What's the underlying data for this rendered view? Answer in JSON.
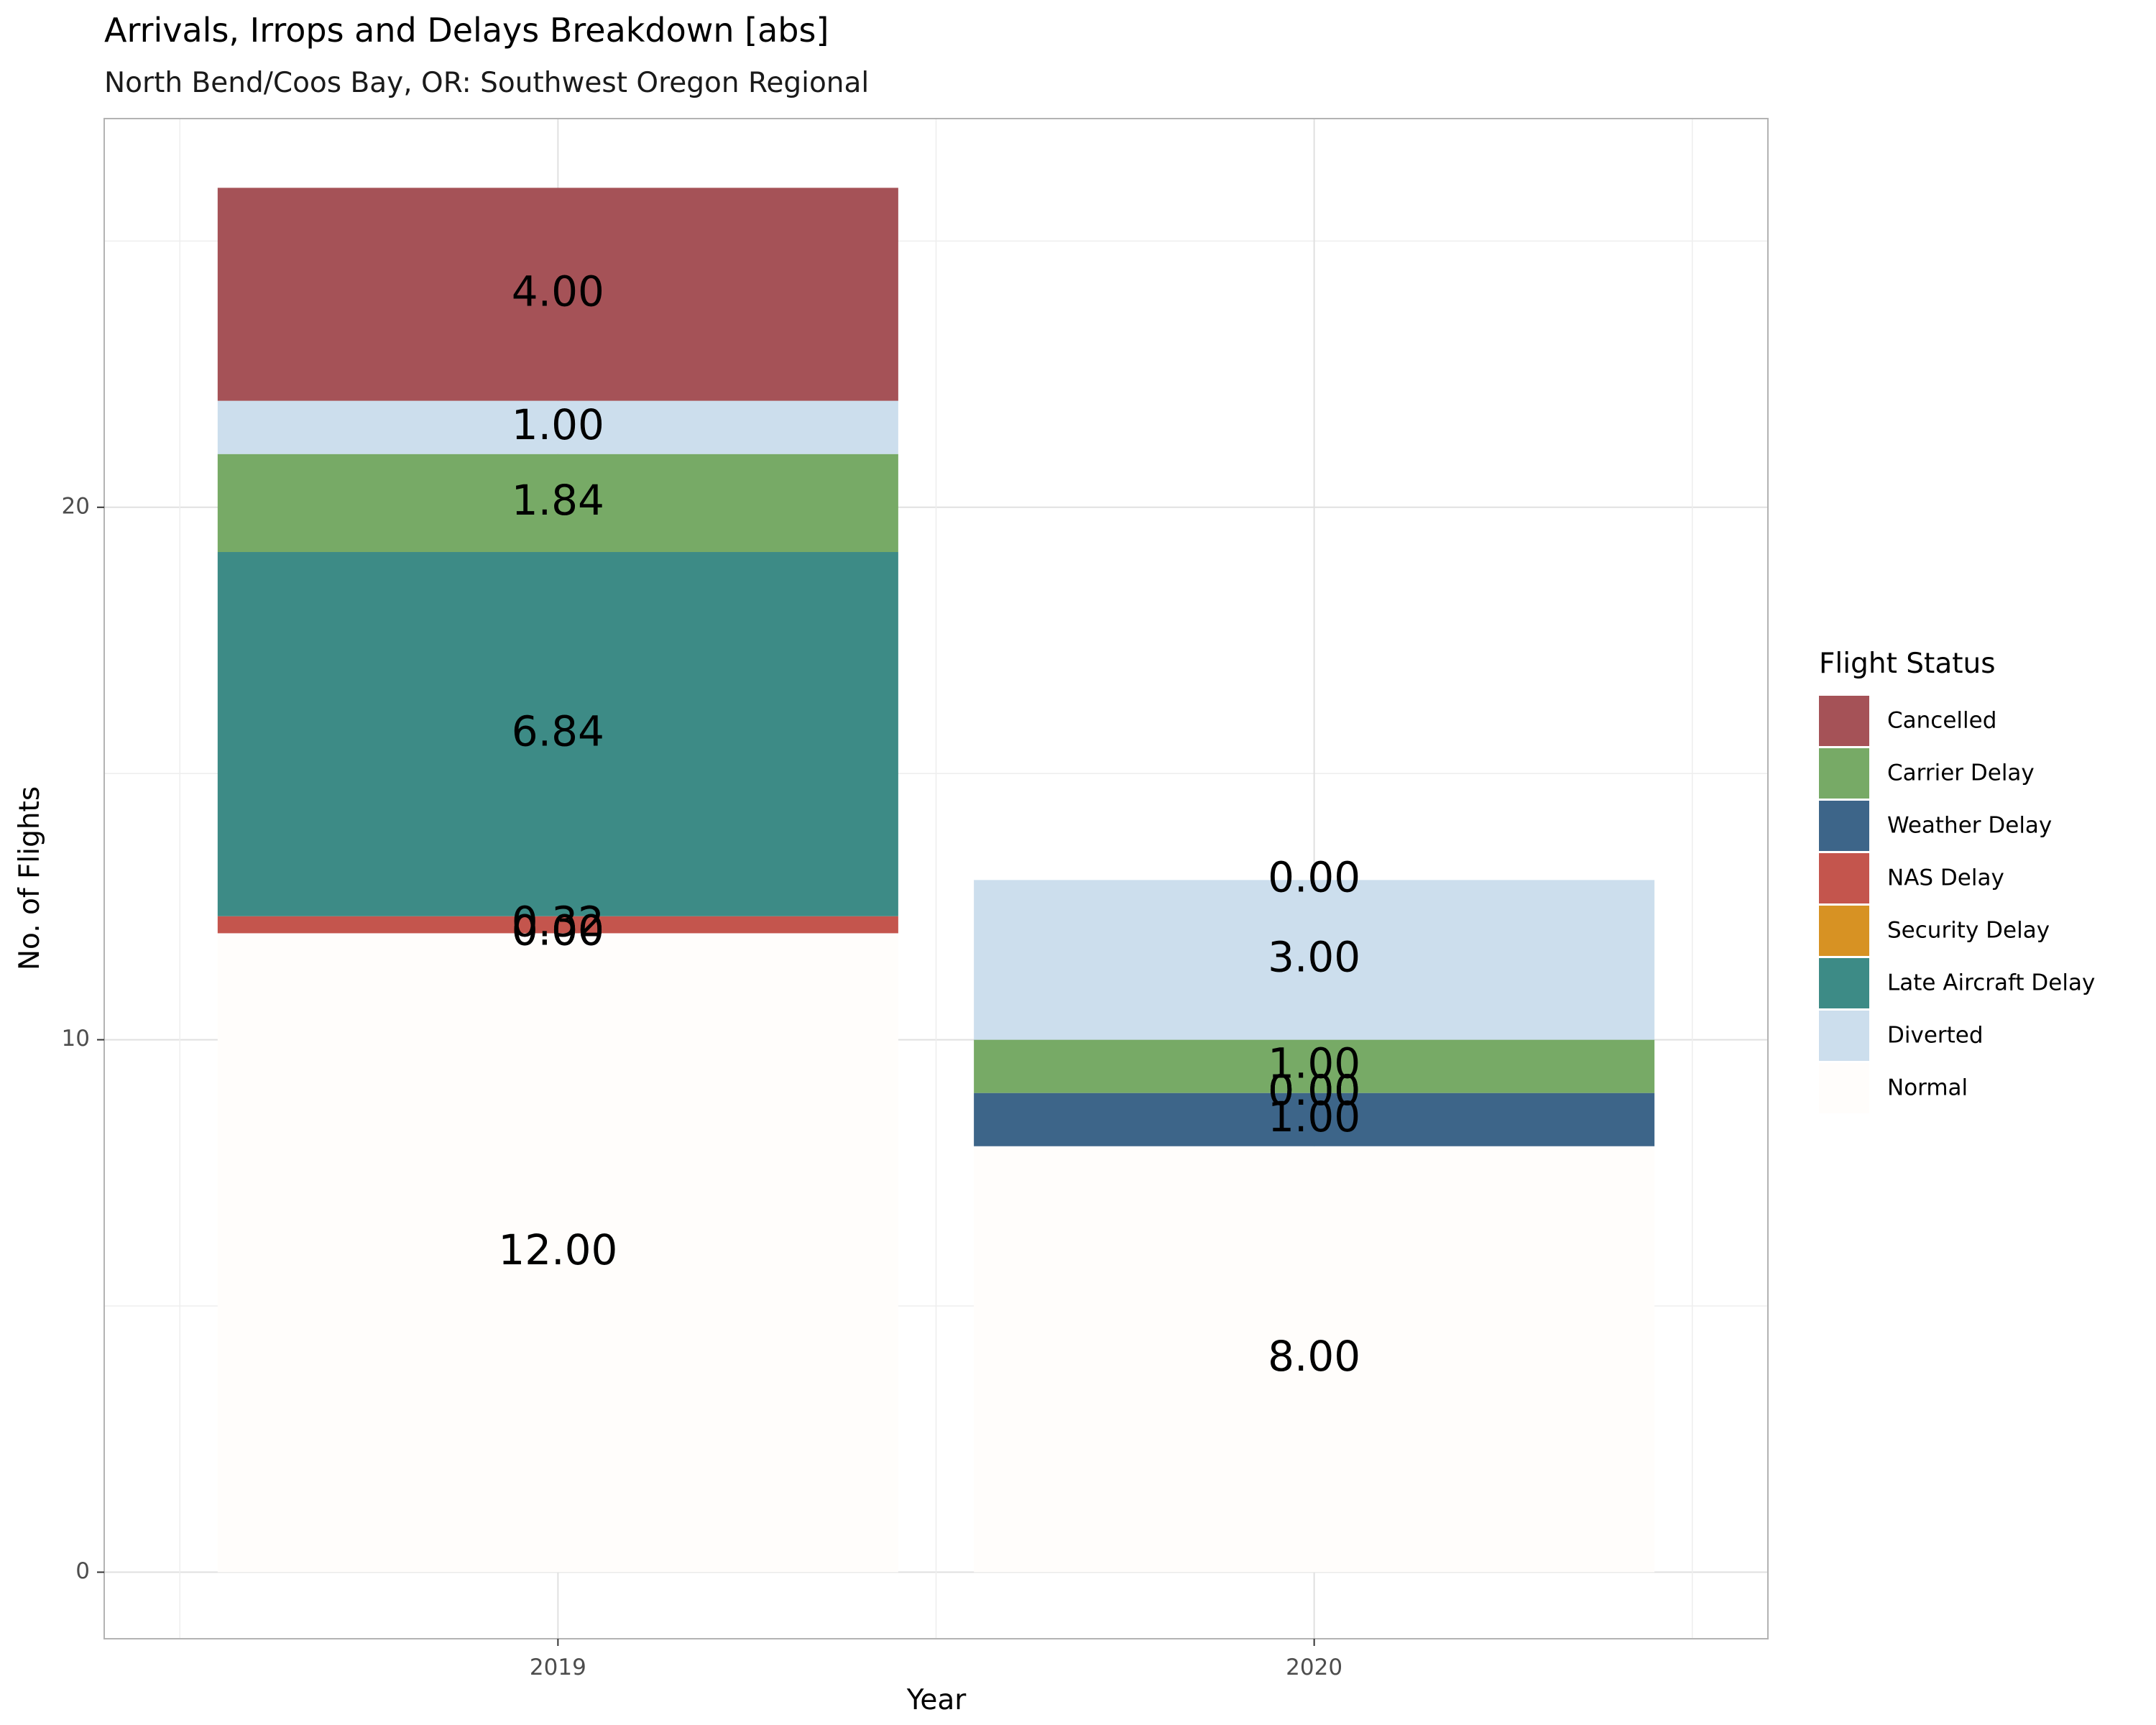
{
  "chart_data": {
    "type": "bar",
    "stacked": true,
    "title": "Arrivals, Irrops and Delays Breakdown [abs]",
    "subtitle": "North Bend/Coos Bay, OR: Southwest Oregon Regional",
    "xlabel": "Year",
    "ylabel": "No. of Flights",
    "categories": [
      "2019",
      "2020"
    ],
    "ylim": [
      -1.25,
      27.3
    ],
    "yticks": [
      "0",
      "10",
      "20"
    ],
    "ytick_values": [
      0,
      10,
      20
    ],
    "grid": true,
    "legend": {
      "title": "Flight Status",
      "position": "right"
    },
    "series": [
      {
        "name": "Normal",
        "color": "#FFFDFB",
        "values": [
          12,
          8
        ],
        "labels": [
          "12.00",
          "8.00"
        ]
      },
      {
        "name": "Weather Delay",
        "color": "#3D6589",
        "values": [
          0,
          1
        ],
        "labels": [
          "0.00",
          "1.00"
        ]
      },
      {
        "name": "Security Delay",
        "color": "#D79223",
        "values": [
          0,
          0
        ],
        "labels": [
          "0.00",
          "0.00"
        ]
      },
      {
        "name": "NAS Delay",
        "color": "#C4554D",
        "values": [
          0.32,
          0
        ],
        "labels": [
          "0.32",
          "0.00"
        ]
      },
      {
        "name": "Late Aircraft Delay",
        "color": "#3D8B86",
        "values": [
          6.84,
          0
        ],
        "labels": [
          "6.84",
          "0.00"
        ]
      },
      {
        "name": "Carrier Delay",
        "color": "#77AA66",
        "values": [
          1.84,
          1
        ],
        "labels": [
          "1.84",
          "1.00"
        ]
      },
      {
        "name": "Diverted",
        "color": "#CCDEED",
        "values": [
          1,
          3
        ],
        "labels": [
          "1.00",
          "3.00"
        ]
      },
      {
        "name": "Cancelled",
        "color": "#A55257",
        "values": [
          4,
          0
        ],
        "labels": [
          "4.00",
          "0.00"
        ]
      }
    ],
    "legend_order": [
      "Cancelled",
      "Carrier Delay",
      "Weather Delay",
      "NAS Delay",
      "Security Delay",
      "Late Aircraft Delay",
      "Diverted",
      "Normal"
    ]
  }
}
